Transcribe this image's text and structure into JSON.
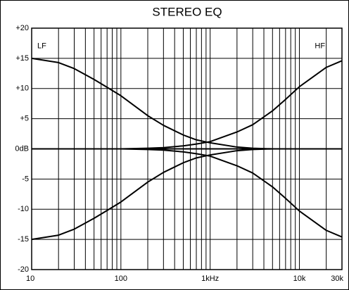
{
  "chart_data": {
    "type": "line",
    "title": "STEREO EQ",
    "x": [
      10,
      20,
      30,
      50,
      70,
      100,
      200,
      300,
      500,
      700,
      1000,
      2000,
      3000,
      5000,
      7000,
      10000,
      20000,
      30000
    ],
    "series": [
      {
        "color": "#000000",
        "values": [
          15,
          14.3,
          13.3,
          11.5,
          10.2,
          8.8,
          5.5,
          3.9,
          2.3,
          1.5,
          1.0,
          0.3,
          0.1,
          0,
          0,
          0,
          0,
          0
        ]
      },
      {
        "color": "#000000",
        "values": [
          -15,
          -14.3,
          -13.3,
          -11.5,
          -10.2,
          -8.8,
          -5.5,
          -3.9,
          -2.3,
          -1.5,
          -1.0,
          -0.3,
          -0.1,
          0,
          0,
          0,
          0,
          0
        ]
      },
      {
        "color": "#000000",
        "values": [
          0,
          0,
          0,
          0,
          0,
          0,
          0.1,
          0.2,
          0.5,
          0.8,
          1.2,
          2.8,
          4.0,
          6.3,
          8.2,
          10.3,
          13.5,
          14.6
        ]
      },
      {
        "color": "#000000",
        "values": [
          0,
          0,
          0,
          0,
          0,
          0,
          -0.1,
          -0.2,
          -0.5,
          -0.8,
          -1.2,
          -2.8,
          -4.0,
          -6.3,
          -8.2,
          -10.3,
          -13.5,
          -14.6
        ]
      },
      {
        "color": "#000000",
        "values": [
          0,
          0,
          0,
          0,
          0,
          0,
          0,
          0,
          0,
          0,
          0,
          0,
          0,
          0,
          0,
          0,
          0,
          0
        ]
      }
    ],
    "annotations": [
      {
        "text": "LF",
        "x": 13,
        "y": 17
      },
      {
        "text": "HF",
        "x": 17000,
        "y": 17
      }
    ],
    "xlim": [
      10,
      30000
    ],
    "xscale": "log",
    "xticks": [
      10,
      100,
      {
        "value": 1000,
        "label": "1kHz"
      },
      {
        "value": 10000,
        "label": "10k"
      },
      {
        "value": 30000,
        "label": "30k"
      }
    ],
    "xgrid": [
      20,
      30,
      40,
      50,
      60,
      70,
      80,
      90,
      200,
      300,
      400,
      500,
      600,
      700,
      800,
      900,
      2000,
      3000,
      4000,
      5000,
      6000,
      7000,
      8000,
      9000,
      20000
    ],
    "ylim": [
      -20,
      20
    ],
    "yticks": [
      {
        "value": 20,
        "label": "+20"
      },
      {
        "value": 15,
        "label": "+15"
      },
      {
        "value": 10,
        "label": "+10"
      },
      {
        "value": 5,
        "label": "+5"
      },
      {
        "value": 0,
        "label": "0dB"
      },
      -5,
      -10,
      -15,
      -20
    ],
    "grid": true
  }
}
